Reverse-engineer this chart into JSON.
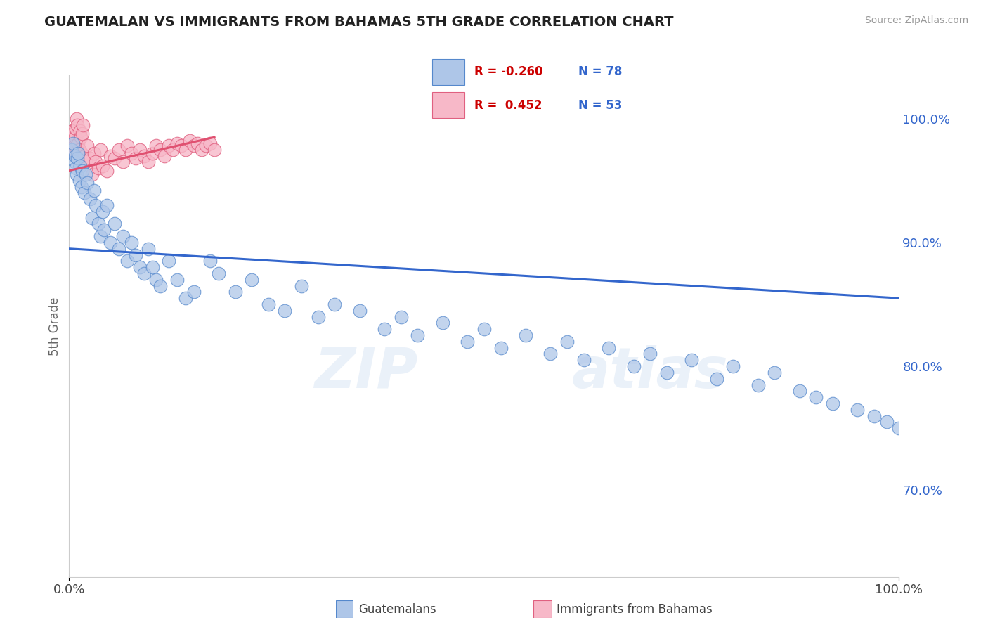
{
  "title": "GUATEMALAN VS IMMIGRANTS FROM BAHAMAS 5TH GRADE CORRELATION CHART",
  "source": "Source: ZipAtlas.com",
  "ylabel_label": "5th Grade",
  "legend_blue_label": "Guatemalans",
  "legend_pink_label": "Immigrants from Bahamas",
  "R_blue": -0.26,
  "N_blue": 78,
  "R_pink": 0.452,
  "N_pink": 53,
  "blue_color": "#aec6e8",
  "blue_edge": "#5588cc",
  "pink_color": "#f7b8c8",
  "pink_edge": "#e06080",
  "blue_line_color": "#3366cc",
  "pink_line_color": "#e05070",
  "background_color": "#ffffff",
  "grid_color": "#cccccc",
  "blue_scatter_x": [
    0.3,
    0.5,
    0.6,
    0.7,
    0.8,
    0.9,
    1.0,
    1.1,
    1.2,
    1.3,
    1.5,
    1.6,
    1.8,
    2.0,
    2.2,
    2.5,
    2.8,
    3.0,
    3.2,
    3.5,
    3.8,
    4.0,
    4.2,
    4.5,
    5.0,
    5.5,
    6.0,
    6.5,
    7.0,
    7.5,
    8.0,
    8.5,
    9.0,
    9.5,
    10.0,
    10.5,
    11.0,
    12.0,
    13.0,
    14.0,
    15.0,
    17.0,
    18.0,
    20.0,
    22.0,
    24.0,
    26.0,
    28.0,
    30.0,
    32.0,
    35.0,
    38.0,
    40.0,
    42.0,
    45.0,
    48.0,
    50.0,
    52.0,
    55.0,
    58.0,
    60.0,
    62.0,
    65.0,
    68.0,
    70.0,
    72.0,
    75.0,
    78.0,
    80.0,
    83.0,
    85.0,
    88.0,
    90.0,
    92.0,
    95.0,
    97.0,
    98.5,
    100.0
  ],
  "blue_scatter_y": [
    97.5,
    98.0,
    96.5,
    97.0,
    96.0,
    95.5,
    96.8,
    97.2,
    95.0,
    96.2,
    94.5,
    95.8,
    94.0,
    95.5,
    94.8,
    93.5,
    92.0,
    94.2,
    93.0,
    91.5,
    90.5,
    92.5,
    91.0,
    93.0,
    90.0,
    91.5,
    89.5,
    90.5,
    88.5,
    90.0,
    89.0,
    88.0,
    87.5,
    89.5,
    88.0,
    87.0,
    86.5,
    88.5,
    87.0,
    85.5,
    86.0,
    88.5,
    87.5,
    86.0,
    87.0,
    85.0,
    84.5,
    86.5,
    84.0,
    85.0,
    84.5,
    83.0,
    84.0,
    82.5,
    83.5,
    82.0,
    83.0,
    81.5,
    82.5,
    81.0,
    82.0,
    80.5,
    81.5,
    80.0,
    81.0,
    79.5,
    80.5,
    79.0,
    80.0,
    78.5,
    79.5,
    78.0,
    77.5,
    77.0,
    76.5,
    76.0,
    75.5,
    75.0
  ],
  "pink_scatter_x": [
    0.2,
    0.3,
    0.4,
    0.5,
    0.6,
    0.7,
    0.8,
    0.9,
    1.0,
    1.1,
    1.2,
    1.3,
    1.4,
    1.5,
    1.6,
    1.7,
    1.8,
    2.0,
    2.2,
    2.5,
    2.8,
    3.0,
    3.2,
    3.5,
    3.8,
    4.0,
    4.5,
    5.0,
    5.5,
    6.0,
    6.5,
    7.0,
    7.5,
    8.0,
    8.5,
    9.0,
    9.5,
    10.0,
    10.5,
    11.0,
    11.5,
    12.0,
    12.5,
    13.0,
    13.5,
    14.0,
    14.5,
    15.0,
    15.5,
    16.0,
    16.5,
    17.0,
    17.5
  ],
  "pink_scatter_y": [
    97.5,
    98.2,
    99.0,
    98.8,
    97.8,
    98.5,
    99.2,
    100.0,
    99.5,
    98.0,
    97.5,
    99.0,
    98.5,
    97.2,
    98.8,
    99.5,
    97.0,
    96.5,
    97.8,
    96.8,
    95.5,
    97.2,
    96.5,
    96.0,
    97.5,
    96.2,
    95.8,
    97.0,
    96.8,
    97.5,
    96.5,
    97.8,
    97.2,
    96.8,
    97.5,
    97.0,
    96.5,
    97.2,
    97.8,
    97.5,
    97.0,
    97.8,
    97.5,
    98.0,
    97.8,
    97.5,
    98.2,
    97.8,
    98.0,
    97.5,
    97.8,
    98.0,
    97.5
  ],
  "blue_line_x": [
    0.0,
    100.0
  ],
  "blue_line_y": [
    89.5,
    85.5
  ],
  "pink_line_x": [
    0.0,
    17.5
  ],
  "pink_line_y": [
    95.8,
    98.5
  ],
  "xmin": 0.0,
  "xmax": 100.0,
  "ymin": 63.0,
  "ymax": 103.5,
  "yticks": [
    70,
    80,
    90,
    100
  ],
  "ytick_labels": [
    "70.0%",
    "80.0%",
    "90.0%",
    "100.0%"
  ],
  "xticks": [
    0,
    100
  ],
  "xtick_labels": [
    "0.0%",
    "100.0%"
  ]
}
